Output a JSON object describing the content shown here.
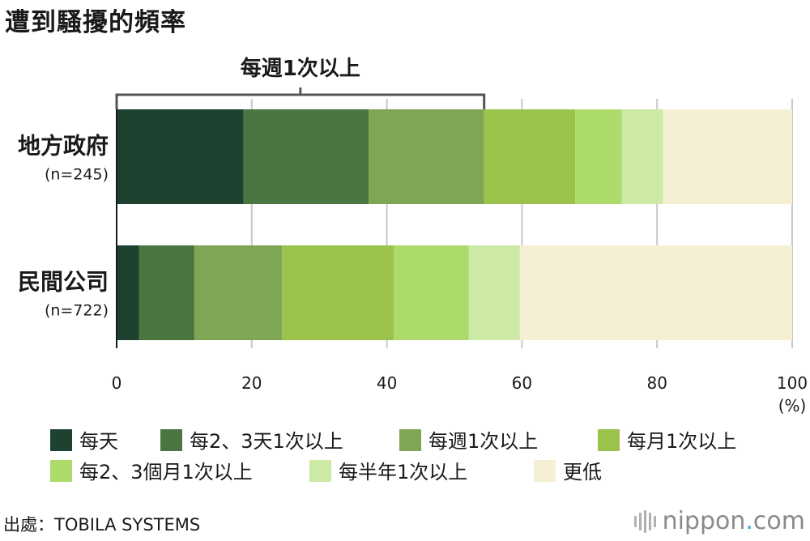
{
  "title": "遭到騷擾的頻率",
  "source": "出處：TOBILA SYSTEMS",
  "logo": {
    "name": "nippon",
    "dot": ".",
    "suffix": "com"
  },
  "chart_data": {
    "type": "bar",
    "orientation": "horizontal",
    "stacked": true,
    "categories": [
      {
        "label": "地方政府",
        "sublabel": "(n=245)"
      },
      {
        "label": "民間公司",
        "sublabel": "(n=722)"
      }
    ],
    "series": [
      {
        "name": "每天",
        "color": "#1d4330",
        "values": [
          18.8,
          3.3
        ]
      },
      {
        "name": "每2、3天1次以上",
        "color": "#4a7642",
        "values": [
          18.5,
          8.2
        ]
      },
      {
        "name": "每週1次以上",
        "color": "#7ea655",
        "values": [
          17.1,
          13.0
        ]
      },
      {
        "name": "每月1次以上",
        "color": "#9bc24b",
        "values": [
          13.5,
          16.5
        ]
      },
      {
        "name": "每2、3個月1次以上",
        "color": "#addb6b",
        "values": [
          6.9,
          11.1
        ]
      },
      {
        "name": "每半年1次以上",
        "color": "#cde9a6",
        "values": [
          6.1,
          7.6
        ]
      },
      {
        "name": "更低",
        "color": "#f5f0d3",
        "values": [
          19.1,
          40.3
        ]
      }
    ],
    "xlim": [
      0,
      100
    ],
    "xticks": [
      "0",
      "20",
      "40",
      "60",
      "80",
      "100"
    ],
    "xunit": "(%)",
    "grid": true,
    "legend_position": "bottom",
    "annotation": {
      "text": "每週1次以上",
      "row": 0,
      "from": 0,
      "to": 54.4
    }
  }
}
